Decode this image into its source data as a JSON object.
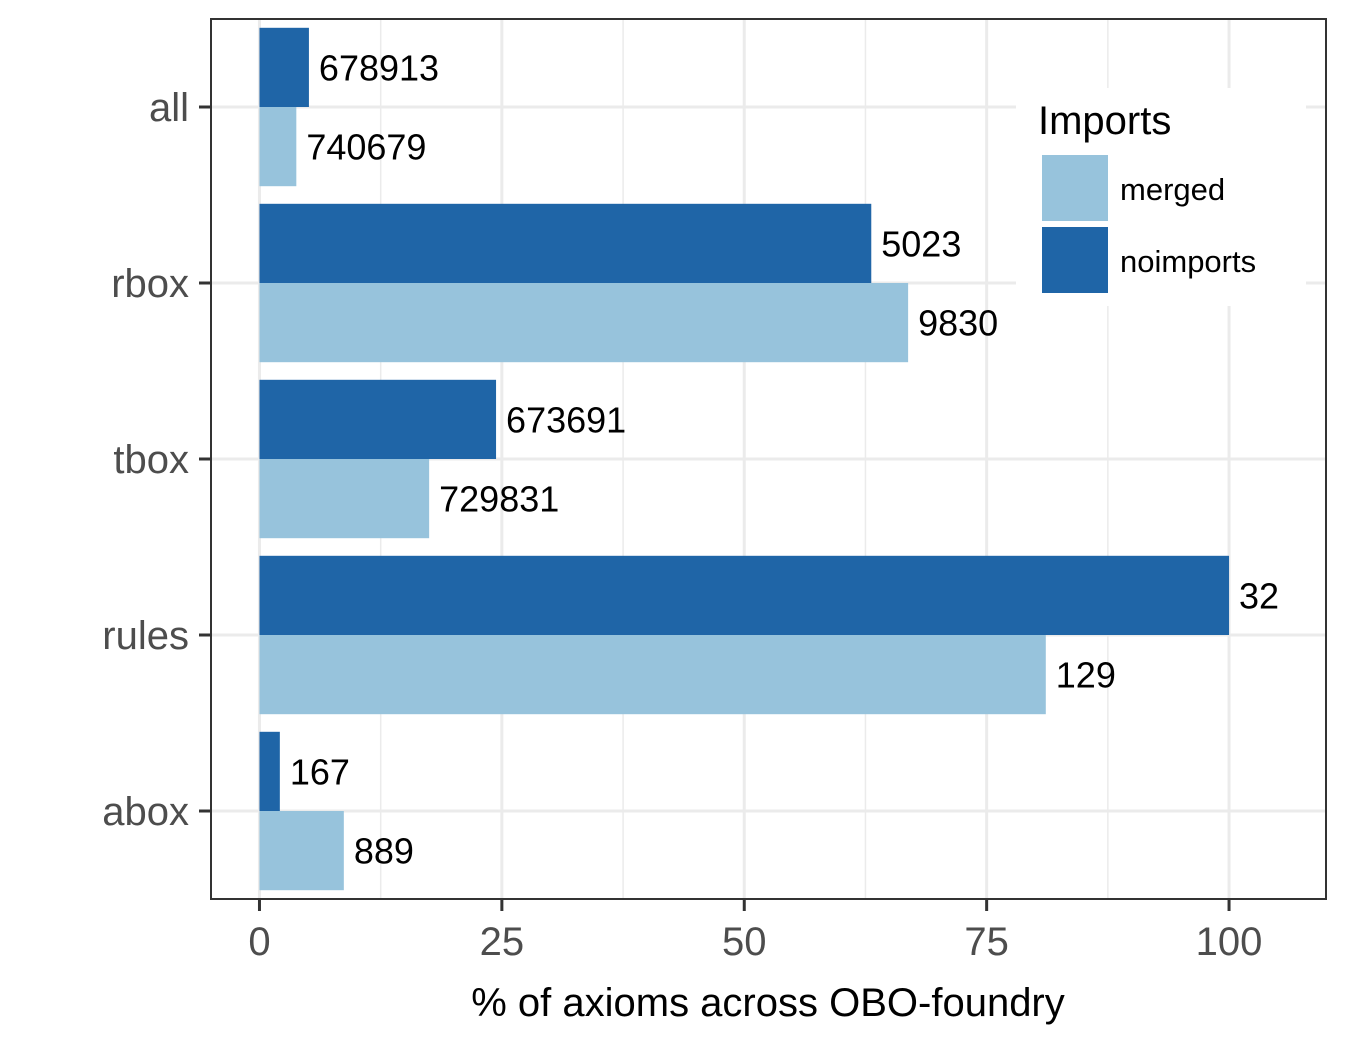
{
  "chart_data": {
    "type": "bar",
    "orientation": "horizontal",
    "categories": [
      "all",
      "rbox",
      "tbox",
      "rules",
      "abox"
    ],
    "series": [
      {
        "name": "noimports",
        "values": [
          5.1,
          63.1,
          24.4,
          100.0,
          2.1
        ],
        "labels": [
          "678913",
          "5023",
          "673691",
          "32",
          "167"
        ]
      },
      {
        "name": "merged",
        "values": [
          3.8,
          66.9,
          17.5,
          81.1,
          8.7
        ],
        "labels": [
          "740679",
          "9830",
          "729831",
          "129",
          "889"
        ]
      }
    ],
    "xlabel": "% of axioms across OBO-foundry",
    "ylabel": "",
    "xlim": [
      -5,
      110
    ],
    "xticks": [
      "0",
      "25",
      "50",
      "75",
      "100"
    ],
    "grid": true,
    "legend": {
      "title": "Imports",
      "entries": [
        "merged",
        "noimports"
      ],
      "position": "top-right"
    },
    "colors": {
      "noimports": "#1f65a7",
      "merged": "#97c3dc",
      "grid": "#ebebeb",
      "border": "#333333"
    }
  }
}
